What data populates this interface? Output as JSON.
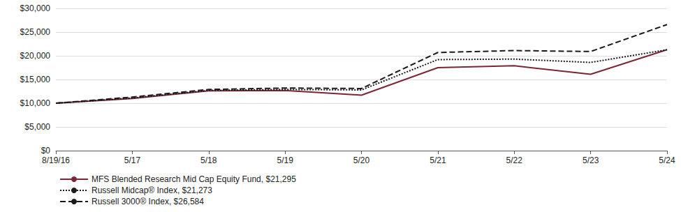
{
  "chart_data": {
    "type": "line",
    "categories": [
      "8/19/16",
      "5/17",
      "5/18",
      "5/19",
      "5/20",
      "5/21",
      "5/22",
      "5/23",
      "5/24"
    ],
    "series": [
      {
        "name": "MFS Blended Research Mid Cap Equity Fund, $21,295",
        "color": "#7B2535",
        "line_style": "solid",
        "values": [
          10000,
          11000,
          12600,
          12700,
          11700,
          17500,
          17900,
          16100,
          21295
        ]
      },
      {
        "name": "Russell Midcap® Index, $21,273",
        "color": "#1a1a1a",
        "line_style": "dotted",
        "values": [
          10000,
          11100,
          12700,
          12900,
          12800,
          19200,
          19300,
          18600,
          21273
        ]
      },
      {
        "name": "Russell 3000® Index, $26,584",
        "color": "#1a1a1a",
        "line_style": "dashed",
        "values": [
          10000,
          11300,
          12900,
          13200,
          13100,
          20700,
          21100,
          20900,
          26584
        ]
      }
    ],
    "ylim": [
      0,
      30000
    ],
    "yticks": [
      {
        "value": 0,
        "label": "$0"
      },
      {
        "value": 5000,
        "label": "$5,000"
      },
      {
        "value": 10000,
        "label": "$10,000"
      },
      {
        "value": 15000,
        "label": "$15,000"
      },
      {
        "value": 20000,
        "label": "$20,000"
      },
      {
        "value": 25000,
        "label": "$25,000"
      },
      {
        "value": 30000,
        "label": "$30,000"
      }
    ],
    "grid": true,
    "legend": "bottom"
  }
}
